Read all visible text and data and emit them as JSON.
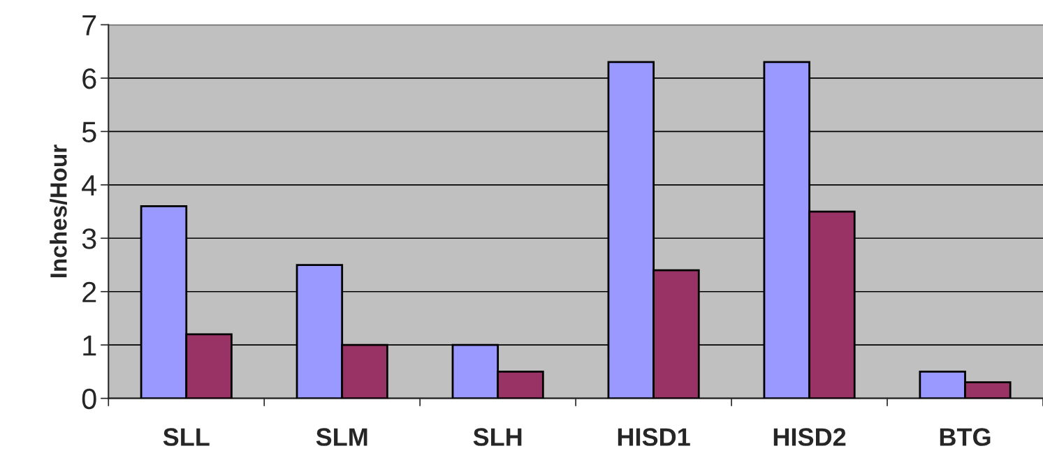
{
  "chart_data": {
    "type": "bar",
    "ylabel": "Inches/Hour",
    "categories": [
      "SLL",
      "SLM",
      "SLH",
      "HISD1",
      "HISD2",
      "BTG"
    ],
    "series": [
      {
        "color": "#9999ff",
        "values": [
          3.6,
          2.5,
          1.0,
          6.3,
          6.3,
          0.5
        ]
      },
      {
        "color": "#993366",
        "values": [
          1.2,
          1.0,
          0.5,
          2.4,
          3.5,
          0.3
        ]
      }
    ],
    "ylim": [
      0,
      7
    ],
    "yticks": [
      0,
      1,
      2,
      3,
      4,
      5,
      6,
      7
    ],
    "grid": "y"
  }
}
